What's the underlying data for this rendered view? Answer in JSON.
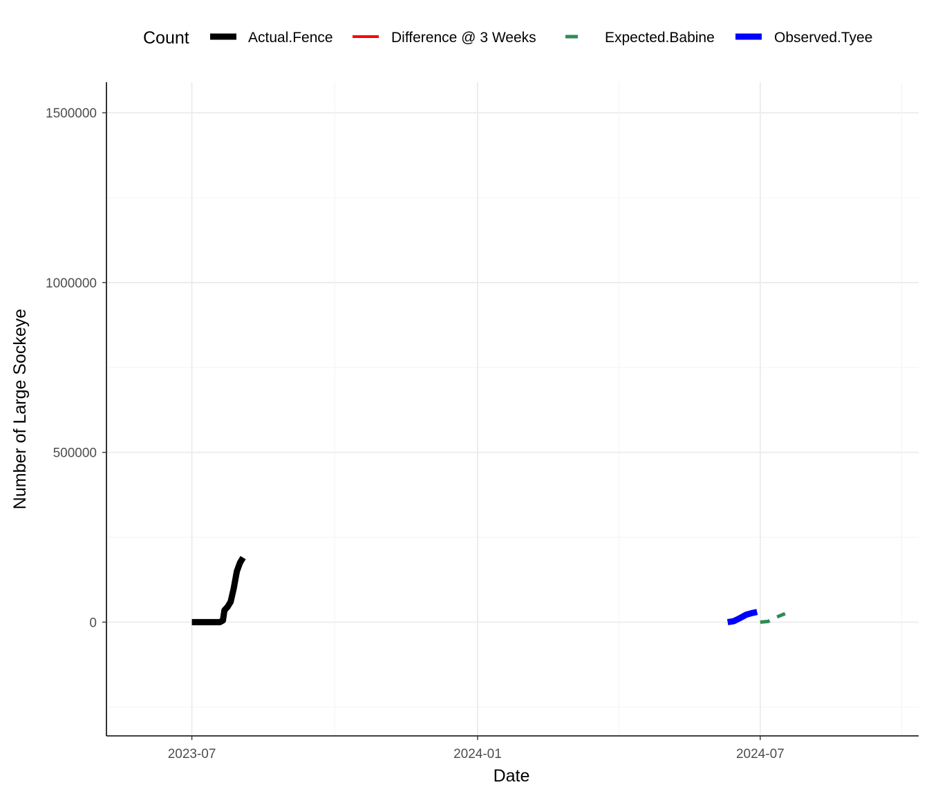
{
  "chart_data": {
    "type": "line",
    "title": "",
    "xlabel": "Date",
    "ylabel": "Number of Large Sockeye",
    "x_axis": {
      "type": "date",
      "range": [
        "2023-05-07",
        "2024-10-11"
      ],
      "ticks": [
        "2023-07",
        "2024-01",
        "2024-07"
      ]
    },
    "y_axis": {
      "range": [
        -335000,
        1590000
      ],
      "ticks": [
        0,
        500000,
        1000000,
        1500000
      ],
      "tick_labels": [
        "0",
        "500000",
        "1000000",
        "1500000"
      ]
    },
    "grid": true,
    "legend": {
      "title": "Count",
      "placement": "top"
    },
    "series": [
      {
        "name": "Actual.Fence",
        "color": "#000000",
        "linetype": "solid",
        "linewidth": 9,
        "points": [
          [
            "2023-07-01",
            0
          ],
          [
            "2023-07-19",
            0
          ],
          [
            "2023-07-21",
            5000
          ],
          [
            "2023-07-22",
            35000
          ],
          [
            "2023-07-24",
            45000
          ],
          [
            "2023-07-26",
            60000
          ],
          [
            "2023-07-28",
            100000
          ],
          [
            "2023-07-30",
            150000
          ],
          [
            "2023-08-01",
            175000
          ],
          [
            "2023-08-03",
            190000
          ]
        ]
      },
      {
        "name": "Difference @ 3 Weeks",
        "color": "#ff0000",
        "linetype": "solid",
        "linewidth": 4,
        "points": []
      },
      {
        "name": "Expected.Babine",
        "color": "#2e8b57",
        "linetype": "dashed",
        "linewidth": 5,
        "points": [
          [
            "2024-07-01",
            0
          ],
          [
            "2024-07-06",
            2000
          ],
          [
            "2024-07-09",
            10000
          ],
          [
            "2024-07-17",
            25000
          ]
        ]
      },
      {
        "name": "Observed.Tyee",
        "color": "#0000ff",
        "linetype": "solid",
        "linewidth": 9,
        "points": [
          [
            "2024-06-10",
            0
          ],
          [
            "2024-06-14",
            3000
          ],
          [
            "2024-06-18",
            12000
          ],
          [
            "2024-06-22",
            22000
          ],
          [
            "2024-06-26",
            27000
          ],
          [
            "2024-06-29",
            30000
          ]
        ]
      }
    ]
  }
}
